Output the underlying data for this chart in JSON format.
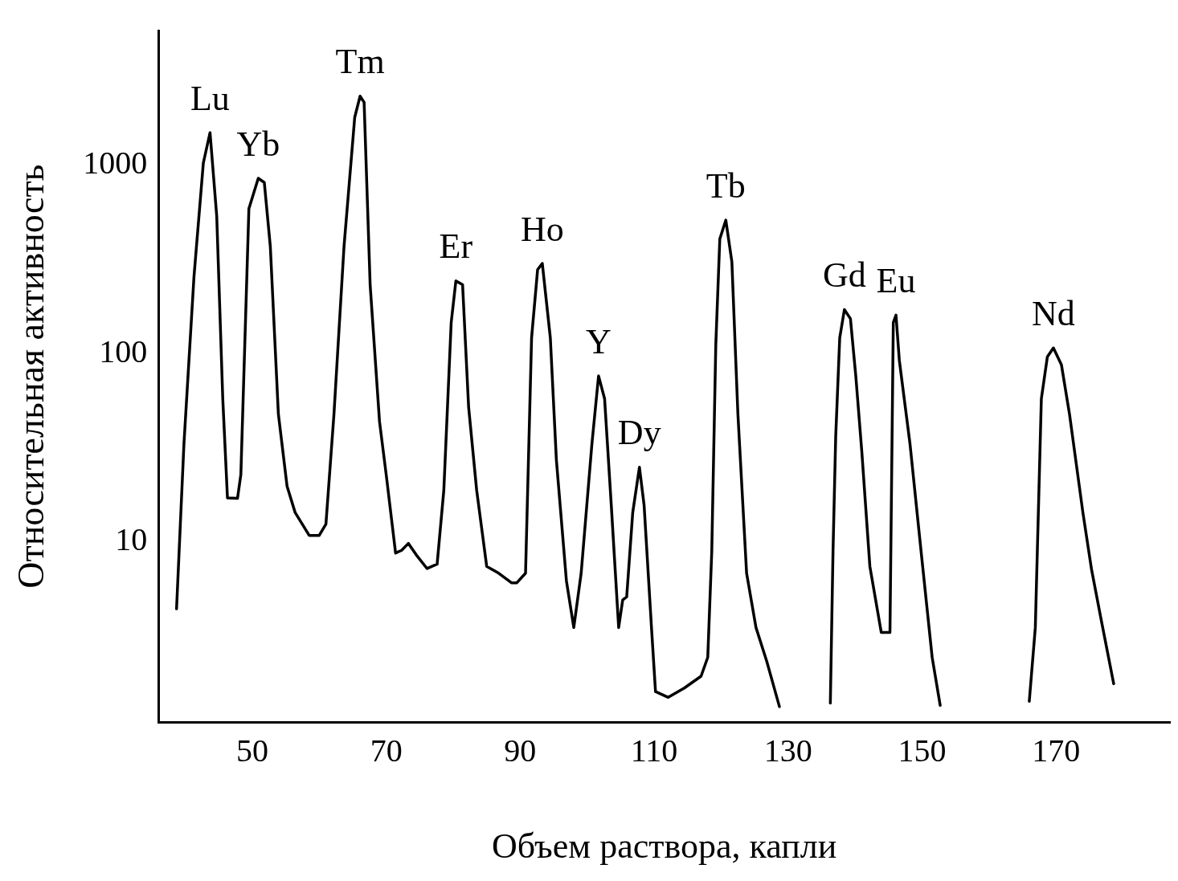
{
  "chart_data": {
    "type": "line",
    "xlabel": "Объем раствора, капли",
    "ylabel": "Относительная активность",
    "log": "y",
    "grid": false,
    "legend": false,
    "marker": "none",
    "line_style": "solid",
    "xlim": [
      36,
      187
    ],
    "xticks": [
      50,
      70,
      90,
      110,
      130,
      150,
      170
    ],
    "ylim": [
      1.1,
      5200
    ],
    "yticks": [
      10,
      100,
      1000
    ],
    "x": [
      38.7,
      39.8,
      41.3,
      42.7,
      43.7,
      44.7,
      45.6,
      46.3,
      47.8,
      48.3,
      49.5,
      50.9,
      51.8,
      52.7,
      53.9,
      55.2,
      56.4,
      58.5,
      60.0,
      61.0,
      62.2,
      63.7,
      65.3,
      66.1,
      66.7,
      67.6,
      69.0,
      70.0,
      71.4,
      72.3,
      73.3,
      74.5,
      76.1,
      77.6,
      78.6,
      79.7,
      80.4,
      81.4,
      82.3,
      83.5,
      85.0,
      86.8,
      88.7,
      89.5,
      90.8,
      91.7,
      92.6,
      93.3,
      94.5,
      95.4,
      96.9,
      98.0,
      99.1,
      100.7,
      101.7,
      102.6,
      103.6,
      104.7,
      105.3,
      105.9,
      106.8,
      107.8,
      108.5,
      109.6,
      110.2,
      112.1,
      114.5,
      117.0,
      118.0,
      118.6,
      119.2,
      119.8,
      120.7,
      121.6,
      122.5,
      123.8,
      125.2,
      126.8,
      128.7,
      132.5,
      136.3,
      136.7,
      137.1,
      137.7,
      138.4,
      139.3,
      140.1,
      141.0,
      142.2,
      143.9,
      145.2,
      145.7,
      146.1,
      146.6,
      148.2,
      149.6,
      151.5,
      152.7,
      159.4,
      166.0,
      166.9,
      167.8,
      168.7,
      169.6,
      170.8,
      172.0,
      174.0,
      175.3,
      176.7,
      178.6
    ],
    "series": [
      {
        "color": "#000000",
        "values": [
          4.4,
          32.9,
          255,
          1030,
          1490,
          536,
          57.5,
          17.1,
          17,
          22.7,
          588,
          853,
          810,
          370,
          47.7,
          19.7,
          14.3,
          10.8,
          10.8,
          12.4,
          47.7,
          370,
          1800,
          2330,
          2160,
          232,
          43.5,
          22.7,
          8.7,
          9.0,
          9.8,
          8.5,
          7.2,
          7.6,
          18.8,
          146,
          243,
          232,
          52,
          18.8,
          7.4,
          6.8,
          6.05,
          6.05,
          6.8,
          121,
          279,
          301,
          121,
          27.3,
          6.2,
          3.5,
          6.8,
          32.9,
          76,
          57.5,
          15.6,
          3.5,
          4.9,
          5.1,
          14.3,
          24.9,
          15.6,
          3.5,
          1.6,
          1.49,
          1.67,
          1.93,
          2.43,
          8.9,
          111,
          406,
          511,
          307,
          47.7,
          6.8,
          3.5,
          2.32,
          1.33,
          null,
          1.39,
          8.9,
          36.1,
          121,
          171,
          153,
          76,
          30,
          7.4,
          3.3,
          3.3,
          146,
          160,
          92,
          32.9,
          10.8,
          2.43,
          1.35,
          null,
          1.42,
          3.5,
          57.5,
          96,
          107,
          87,
          47.7,
          14.3,
          7.1,
          3.9,
          1.76
        ]
      }
    ],
    "annotations": [
      {
        "text": "Lu",
        "x": 43.7,
        "y": 1490
      },
      {
        "text": "Yb",
        "x": 50.9,
        "y": 853
      },
      {
        "text": "Tm",
        "x": 66.1,
        "y": 2330
      },
      {
        "text": "Er",
        "x": 80.4,
        "y": 243
      },
      {
        "text": "Ho",
        "x": 93.3,
        "y": 301
      },
      {
        "text": "Y",
        "x": 101.7,
        "y": 76
      },
      {
        "text": "Dy",
        "x": 107.8,
        "y": 24.9
      },
      {
        "text": "Tb",
        "x": 120.7,
        "y": 511
      },
      {
        "text": "Gd",
        "x": 138.4,
        "y": 171
      },
      {
        "text": "Eu",
        "x": 146.1,
        "y": 160
      },
      {
        "text": "Nd",
        "x": 169.6,
        "y": 107
      }
    ]
  }
}
